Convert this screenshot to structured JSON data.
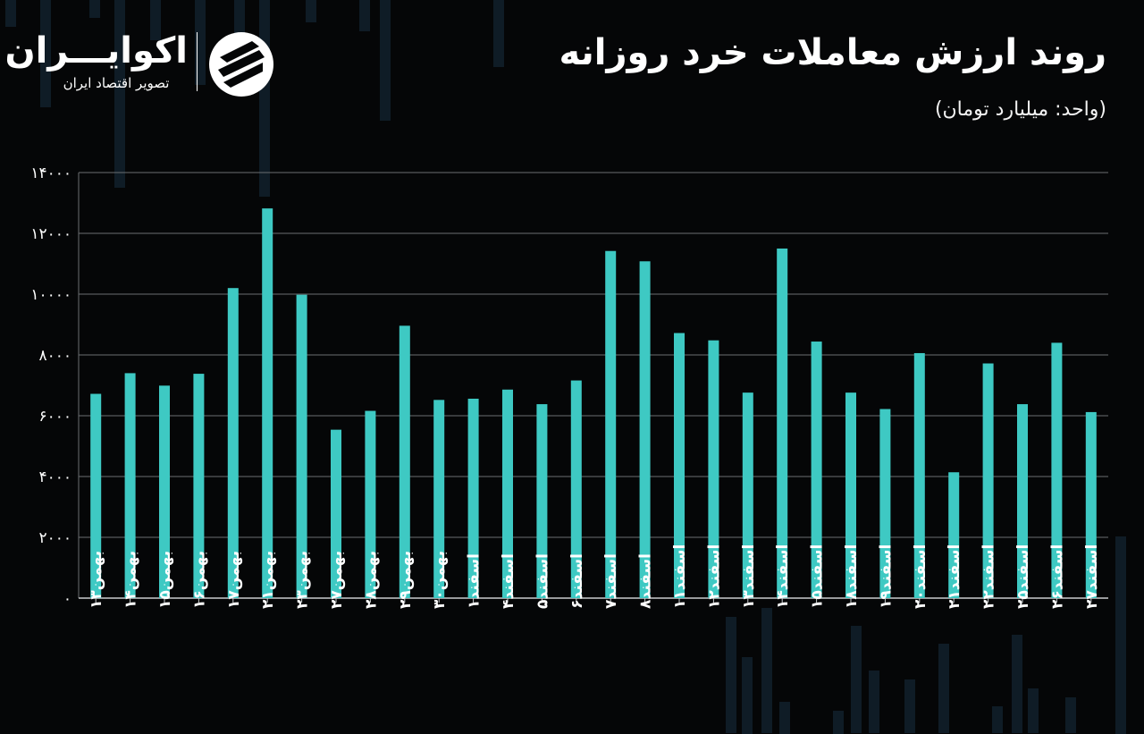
{
  "header": {
    "title": "روند ارزش معاملات خرد روزانه",
    "subtitle": "(واحد: میلیارد تومان)"
  },
  "brand": {
    "name": "اکوایـــران",
    "tagline": "تصویر اقتصاد ایران",
    "logo_icon": "ecoiran-logo-icon"
  },
  "colors": {
    "background": "#050607",
    "bar": "#3ec9c3",
    "grid": "#6b6f72",
    "text": "#ffffff"
  },
  "chart_data": {
    "type": "bar",
    "categories": [
      "بهمن۱۳",
      "بهمن۱۴",
      "بهمن۱۵",
      "بهمن۱۶",
      "بهمن۱۷",
      "بهمن۲۱",
      "بهمن۲۳",
      "بهمن۲۷",
      "بهمن۲۸",
      "بهمن۲۹",
      "بهمن۳۰",
      "اسفند۱",
      "اسفند۴",
      "اسفند۵",
      "اسفند۶",
      "اسفند۷",
      "اسفند۸",
      "اسفند۱۱",
      "اسفند۱۲",
      "اسفند۱۳",
      "اسفند۱۴",
      "اسفند۱۵",
      "اسفند۱۸",
      "اسفند۱۹",
      "اسفند۲۰",
      "اسفند۲۱",
      "اسفند۲۲",
      "اسفند۲۵",
      "اسفند۲۶",
      "اسفند۲۷"
    ],
    "values": [
      6720,
      7400,
      6990,
      7380,
      10200,
      12820,
      9980,
      5540,
      6160,
      8960,
      6520,
      6560,
      6860,
      6380,
      7160,
      11420,
      11080,
      8720,
      8480,
      6760,
      11500,
      8440,
      6760,
      6220,
      8060,
      4140,
      7720,
      6380,
      8400,
      6120
    ],
    "ylim": [
      0,
      14000
    ],
    "yticks": [
      "0",
      "2000",
      "4000",
      "6000",
      "8000",
      "10000",
      "12000",
      "14000"
    ],
    "ytick_labels": [
      "۰",
      "۲۰۰۰",
      "۴۰۰۰",
      "۶۰۰۰",
      "۸۰۰۰",
      "۱۰۰۰۰",
      "۱۲۰۰۰",
      "۱۴۰۰۰"
    ],
    "grid": true,
    "legend": "none"
  }
}
